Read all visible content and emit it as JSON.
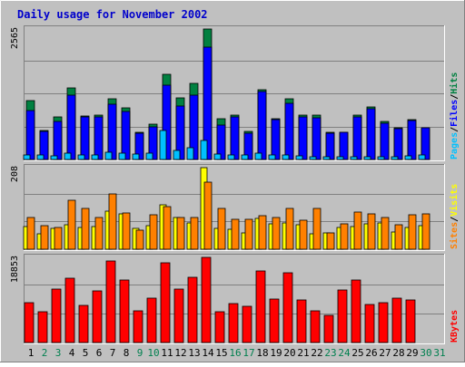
{
  "chart_data": {
    "type": "bar",
    "title": "Daily usage for November 2002",
    "days": [
      "1",
      "2",
      "3",
      "4",
      "5",
      "6",
      "7",
      "8",
      "9",
      "10",
      "11",
      "12",
      "13",
      "14",
      "15",
      "16",
      "17",
      "18",
      "19",
      "20",
      "21",
      "22",
      "23",
      "24",
      "25",
      "26",
      "27",
      "28",
      "29",
      "30",
      "31"
    ],
    "weekend_days": [
      "2",
      "3",
      "9",
      "10",
      "16",
      "17",
      "23",
      "24",
      "30",
      "31"
    ],
    "colors": {
      "title": "#0000cc",
      "hits": "#008040",
      "files": "#0000ff",
      "pages": "#00c0ff",
      "visits": "#ffff00",
      "sites": "#ff8000",
      "kbytes": "#ff0000",
      "weekday_label": "#000000",
      "weekend_label": "#00804f",
      "panel_bg": "#c0c0c0"
    },
    "panels": [
      {
        "id": "requests",
        "max_label": "2565",
        "max": 2565,
        "legend": [
          {
            "text": "Pages",
            "color": "#00c0ff"
          },
          {
            "text": "/",
            "color": "#000000"
          },
          {
            "text": "Files",
            "color": "#0000ff"
          },
          {
            "text": "/",
            "color": "#000000"
          },
          {
            "text": "Hits",
            "color": "#008040"
          }
        ],
        "series": [
          {
            "name": "Hits",
            "color": "#008040",
            "values": [
              1160,
              567,
              830,
              1400,
              860,
              870,
              1190,
              1020,
              530,
              700,
              1670,
              1220,
              1490,
              2565,
              800,
              880,
              550,
              1370,
              810,
              1190,
              870,
              880,
              530,
              540,
              880,
              1030,
              740,
              630,
              780,
              610,
              0
            ]
          },
          {
            "name": "Files",
            "color": "#0000ff",
            "values": [
              970,
              560,
              740,
              1270,
              840,
              830,
              1080,
              940,
              520,
              640,
              1460,
              1050,
              1270,
              2210,
              680,
              830,
              510,
              1340,
              790,
              1100,
              830,
              820,
              510,
              540,
              840,
              1000,
              720,
              600,
              760,
              620,
              0
            ]
          },
          {
            "name": "Pages",
            "color": "#00c0ff",
            "values": [
              90,
              90,
              80,
              120,
              90,
              90,
              140,
              130,
              100,
              130,
              570,
              170,
              230,
              370,
              100,
              90,
              90,
              120,
              90,
              90,
              70,
              60,
              60,
              50,
              60,
              60,
              50,
              50,
              70,
              90,
              0
            ]
          }
        ]
      },
      {
        "id": "visits",
        "max_label": "208",
        "max": 208,
        "legend": [
          {
            "text": "Sites",
            "color": "#ff8000"
          },
          {
            "text": "/",
            "color": "#000000"
          },
          {
            "text": "Visits",
            "color": "#ffff00"
          }
        ],
        "series": [
          {
            "name": "Visits",
            "color": "#ffff00",
            "values": [
              58,
              40,
              52,
              62,
              55,
              57,
              97,
              91,
              52,
              60,
              114,
              82,
              66,
              208,
              52,
              50,
              42,
              78,
              64,
              66,
              62,
              40,
              42,
              55,
              58,
              65,
              67,
              44,
              55,
              60,
              0
            ]
          },
          {
            "name": "Sites",
            "color": "#ff8000",
            "values": [
              80,
              61,
              56,
              124,
              105,
              80,
              140,
              93,
              48,
              88,
              108,
              80,
              81,
              172,
              104,
              76,
              76,
              85,
              81,
              103,
              75,
              104,
              41,
              64,
              94,
              89,
              81,
              62,
              87,
              91,
              0
            ]
          }
        ]
      },
      {
        "id": "kbytes",
        "max_label": "18853",
        "max": 18853,
        "legend": [
          {
            "text": "KBytes",
            "color": "#ff0000"
          }
        ],
        "series": [
          {
            "name": "KBytes",
            "color": "#ff0000",
            "values": [
              8900,
              6900,
              11800,
              14200,
              8300,
              11500,
              18100,
              13800,
              7000,
              9800,
              17700,
              11800,
              14500,
              18853,
              6900,
              8600,
              8000,
              15800,
              9600,
              15400,
              9400,
              7100,
              6100,
              11700,
              13900,
              8400,
              8900,
              9900,
              9500,
              0,
              0
            ]
          }
        ]
      }
    ]
  }
}
